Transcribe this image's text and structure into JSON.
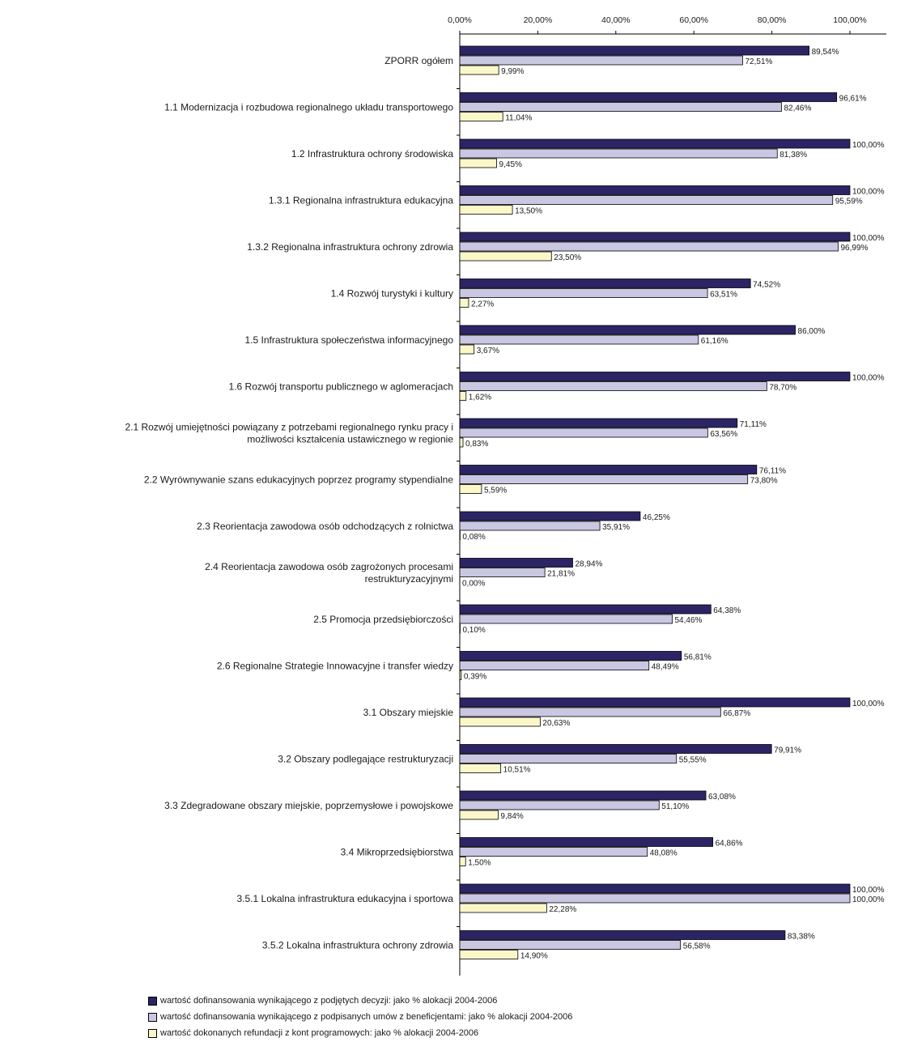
{
  "chart_data": {
    "type": "bar",
    "orientation": "horizontal",
    "xlim": [
      0,
      100
    ],
    "ticks": [
      "0,00%",
      "20,00%",
      "40,00%",
      "60,00%",
      "80,00%",
      "100,00%"
    ],
    "tick_position": "top",
    "grid": false,
    "legend_position": "bottom",
    "categories": [
      [
        "ZPORR ogółem"
      ],
      [
        "1.1 Modernizacja i rozbudowa regionalnego układu transportowego"
      ],
      [
        "1.2 Infrastruktura ochrony środowiska"
      ],
      [
        "1.3.1 Regionalna infrastruktura edukacyjna"
      ],
      [
        "1.3.2 Regionalna infrastruktura ochrony zdrowia"
      ],
      [
        "1.4 Rozwój turystyki i kultury"
      ],
      [
        "1.5 Infrastruktura społeczeństwa informacyjnego"
      ],
      [
        "1.6 Rozwój transportu publicznego w aglomeracjach"
      ],
      [
        "2.1 Rozwój umiejętności powiązany z potrzebami regionalnego rynku pracy i",
        "możliwości kształcenia ustawicznego w regionie"
      ],
      [
        "2.2 Wyrównywanie szans edukacyjnych poprzez programy stypendialne"
      ],
      [
        "2.3 Reorientacja zawodowa osób odchodzących z rolnictwa"
      ],
      [
        "2.4 Reorientacja zawodowa osób zagrożonych procesami",
        "restrukturyzacyjnymi"
      ],
      [
        "2.5 Promocja przedsiębiorczości"
      ],
      [
        "2.6 Regionalne Strategie Innowacyjne i transfer wiedzy"
      ],
      [
        "3.1 Obszary miejskie"
      ],
      [
        "3.2 Obszary podlegające restrukturyzacji"
      ],
      [
        "3.3 Zdegradowane obszary miejskie, poprzemysłowe i powojskowe"
      ],
      [
        "3.4 Mikroprzedsiębiorstwa"
      ],
      [
        "3.5.1 Lokalna infrastruktura edukacyjna i sportowa"
      ],
      [
        "3.5.2 Lokalna infrastruktura ochrony zdrowia"
      ]
    ],
    "series": [
      {
        "name": "wartość dofinansowania wynikającego z podjętych decyzji: jako % alokacji 2004-2006",
        "color": "#2b2566",
        "values": [
          89.54,
          96.61,
          100.0,
          100.0,
          100.0,
          74.52,
          86.0,
          100.0,
          71.11,
          76.11,
          46.25,
          28.94,
          64.38,
          56.81,
          100.0,
          79.91,
          63.08,
          64.86,
          100.0,
          83.38
        ],
        "labels": [
          "89,54%",
          "96,61%",
          "100,00%",
          "100,00%",
          "100,00%",
          "74,52%",
          "86,00%",
          "100,00%",
          "71,11%",
          "76,11%",
          "46,25%",
          "28,94%",
          "64,38%",
          "56,81%",
          "100,00%",
          "79,91%",
          "63,08%",
          "64,86%",
          "100,00%",
          "83,38%"
        ]
      },
      {
        "name": "wartość dofinansowania wynikającego z podpisanych umów z beneficjentami: jako % alokacji 2004-2006",
        "color": "#c9c7e2",
        "values": [
          72.51,
          82.46,
          81.38,
          95.59,
          96.99,
          63.51,
          61.16,
          78.7,
          63.56,
          73.8,
          35.91,
          21.81,
          54.46,
          48.49,
          66.87,
          55.55,
          51.1,
          48.08,
          100.0,
          56.58
        ],
        "labels": [
          "72,51%",
          "82,46%",
          "81,38%",
          "95,59%",
          "96,99%",
          "63,51%",
          "61,16%",
          "78,70%",
          "63,56%",
          "73,80%",
          "35,91%",
          "21,81%",
          "54,46%",
          "48,49%",
          "66,87%",
          "55,55%",
          "51,10%",
          "48,08%",
          "100,00%",
          "56,58%"
        ]
      },
      {
        "name": "wartość dokonanych refundacji z kont programowych: jako % alokacji 2004-2006",
        "color": "#fbf7c9",
        "values": [
          9.99,
          11.04,
          9.45,
          13.5,
          23.5,
          2.27,
          3.67,
          1.62,
          0.83,
          5.59,
          0.08,
          0.0,
          0.1,
          0.39,
          20.63,
          10.51,
          9.84,
          1.5,
          22.28,
          14.9
        ],
        "labels": [
          "9,99%",
          "11,04%",
          "9,45%",
          "13,50%",
          "23,50%",
          "2,27%",
          "3,67%",
          "1,62%",
          "0,83%",
          "5,59%",
          "0,08%",
          "0,00%",
          "0,10%",
          "0,39%",
          "20,63%",
          "10,51%",
          "9,84%",
          "1,50%",
          "22,28%",
          "14,90%"
        ]
      }
    ]
  }
}
